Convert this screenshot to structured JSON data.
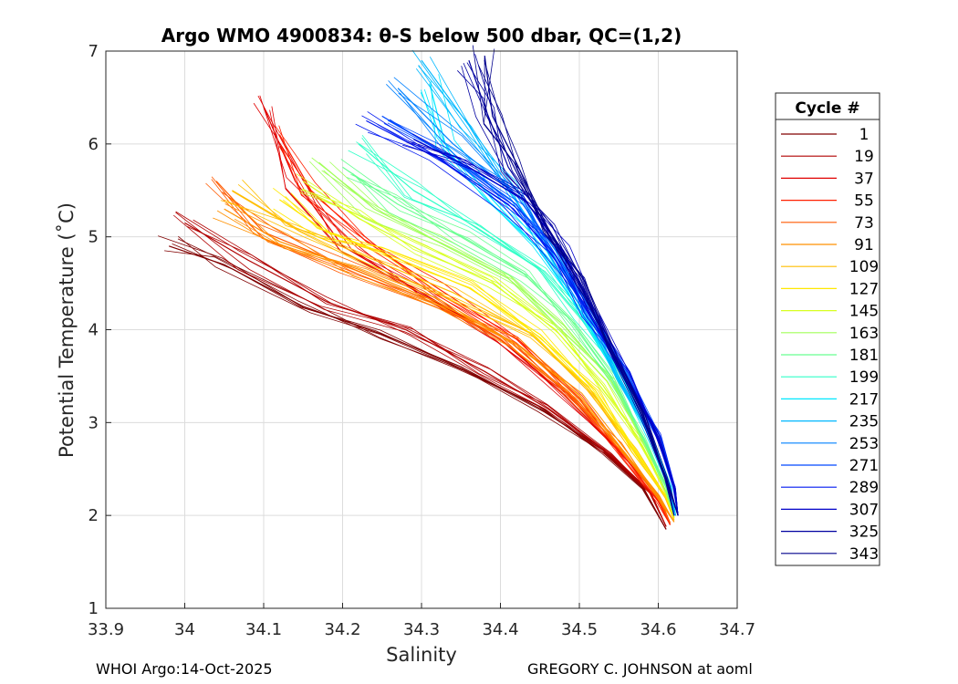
{
  "chart_data": {
    "type": "line",
    "title": "Argo WMO 4900834: θ-S below 500 dbar,  QC=(1,2)",
    "xlabel": "Salinity",
    "ylabel": "Potential Temperature (˚C)",
    "xlim": [
      33.9,
      34.7
    ],
    "ylim": [
      1,
      7
    ],
    "xticks": [
      "33.9",
      "34",
      "34.1",
      "34.2",
      "34.3",
      "34.4",
      "34.5",
      "34.6",
      "34.7"
    ],
    "yticks": [
      "1",
      "2",
      "3",
      "4",
      "5",
      "6",
      "7"
    ],
    "grid": true,
    "legend": {
      "title": "Cycle #",
      "placement": "right, outside",
      "entries": [
        {
          "label": "1",
          "color": "#800000"
        },
        {
          "label": "19",
          "color": "#b00000"
        },
        {
          "label": "37",
          "color": "#e00000"
        },
        {
          "label": "55",
          "color": "#ff2000"
        },
        {
          "label": "73",
          "color": "#ff5a00"
        },
        {
          "label": "91",
          "color": "#ff9000"
        },
        {
          "label": "109",
          "color": "#ffbe00"
        },
        {
          "label": "127",
          "color": "#ffe800"
        },
        {
          "label": "145",
          "color": "#d8ff20"
        },
        {
          "label": "163",
          "color": "#a0ff58"
        },
        {
          "label": "181",
          "color": "#68ff90"
        },
        {
          "label": "199",
          "color": "#30ffc8"
        },
        {
          "label": "217",
          "color": "#00e8ff"
        },
        {
          "label": "235",
          "color": "#00b8ff"
        },
        {
          "label": "253",
          "color": "#0080ff"
        },
        {
          "label": "271",
          "color": "#0048ff"
        },
        {
          "label": "289",
          "color": "#0018f0"
        },
        {
          "label": "307",
          "color": "#0000c8"
        },
        {
          "label": "325",
          "color": "#0000a0"
        },
        {
          "label": "343",
          "color": "#00008c"
        }
      ]
    },
    "series": [
      {
        "color": "#800000",
        "points": [
          [
            33.98,
            4.9
          ],
          [
            34.05,
            4.7
          ],
          [
            34.15,
            4.25
          ],
          [
            34.25,
            3.95
          ],
          [
            34.35,
            3.6
          ],
          [
            34.45,
            3.15
          ],
          [
            34.53,
            2.7
          ],
          [
            34.58,
            2.3
          ],
          [
            34.61,
            1.85
          ]
        ]
      },
      {
        "color": "#b00000",
        "points": [
          [
            34.0,
            5.15
          ],
          [
            34.08,
            4.75
          ],
          [
            34.18,
            4.3
          ],
          [
            34.28,
            4.0
          ],
          [
            34.38,
            3.55
          ],
          [
            34.46,
            3.15
          ],
          [
            34.54,
            2.65
          ],
          [
            34.59,
            2.25
          ],
          [
            34.61,
            1.88
          ]
        ]
      },
      {
        "color": "#e00000",
        "points": [
          [
            34.1,
            6.4
          ],
          [
            34.14,
            5.6
          ],
          [
            34.2,
            4.9
          ],
          [
            34.3,
            4.4
          ],
          [
            34.4,
            3.9
          ],
          [
            34.48,
            3.3
          ],
          [
            34.55,
            2.7
          ],
          [
            34.6,
            2.2
          ],
          [
            34.615,
            1.9
          ]
        ]
      },
      {
        "color": "#ff2000",
        "points": [
          [
            34.12,
            6.1
          ],
          [
            34.16,
            5.5
          ],
          [
            34.23,
            4.95
          ],
          [
            34.32,
            4.45
          ],
          [
            34.42,
            3.9
          ],
          [
            34.5,
            3.25
          ],
          [
            34.56,
            2.6
          ],
          [
            34.6,
            2.15
          ],
          [
            34.615,
            1.9
          ]
        ]
      },
      {
        "color": "#ff5a00",
        "points": [
          [
            34.04,
            5.6
          ],
          [
            34.1,
            5.05
          ],
          [
            34.2,
            4.7
          ],
          [
            34.3,
            4.35
          ],
          [
            34.4,
            3.9
          ],
          [
            34.48,
            3.35
          ],
          [
            34.55,
            2.75
          ],
          [
            34.6,
            2.2
          ],
          [
            34.615,
            1.92
          ]
        ]
      },
      {
        "color": "#ff9000",
        "points": [
          [
            34.05,
            5.3
          ],
          [
            34.12,
            4.95
          ],
          [
            34.22,
            4.65
          ],
          [
            34.32,
            4.3
          ],
          [
            34.42,
            3.85
          ],
          [
            34.5,
            3.3
          ],
          [
            34.56,
            2.65
          ],
          [
            34.6,
            2.2
          ],
          [
            34.62,
            1.93
          ]
        ]
      },
      {
        "color": "#ffbe00",
        "points": [
          [
            34.06,
            5.5
          ],
          [
            34.14,
            5.1
          ],
          [
            34.24,
            4.75
          ],
          [
            34.34,
            4.4
          ],
          [
            34.44,
            3.95
          ],
          [
            34.51,
            3.35
          ],
          [
            34.57,
            2.7
          ],
          [
            34.61,
            2.2
          ],
          [
            34.62,
            1.95
          ]
        ]
      },
      {
        "color": "#ffe800",
        "points": [
          [
            34.12,
            5.4
          ],
          [
            34.18,
            5.05
          ],
          [
            34.26,
            4.8
          ],
          [
            34.36,
            4.45
          ],
          [
            34.45,
            3.95
          ],
          [
            34.52,
            3.35
          ],
          [
            34.57,
            2.7
          ],
          [
            34.61,
            2.2
          ],
          [
            34.62,
            1.97
          ]
        ]
      },
      {
        "color": "#d8ff20",
        "points": [
          [
            34.15,
            5.6
          ],
          [
            34.22,
            5.2
          ],
          [
            34.3,
            4.85
          ],
          [
            34.39,
            4.5
          ],
          [
            34.47,
            4.0
          ],
          [
            34.53,
            3.4
          ],
          [
            34.58,
            2.75
          ],
          [
            34.61,
            2.25
          ],
          [
            34.62,
            1.98
          ]
        ]
      },
      {
        "color": "#a0ff58",
        "points": [
          [
            34.17,
            5.8
          ],
          [
            34.24,
            5.3
          ],
          [
            34.32,
            4.95
          ],
          [
            34.41,
            4.55
          ],
          [
            34.48,
            4.05
          ],
          [
            34.54,
            3.45
          ],
          [
            34.58,
            2.8
          ],
          [
            34.61,
            2.3
          ],
          [
            34.62,
            2.0
          ]
        ]
      },
      {
        "color": "#68ff90",
        "points": [
          [
            34.2,
            5.75
          ],
          [
            34.27,
            5.35
          ],
          [
            34.35,
            5.0
          ],
          [
            34.43,
            4.6
          ],
          [
            34.49,
            4.1
          ],
          [
            34.54,
            3.5
          ],
          [
            34.58,
            2.85
          ],
          [
            34.61,
            2.3
          ],
          [
            34.62,
            2.0
          ]
        ]
      },
      {
        "color": "#30ffc8",
        "points": [
          [
            34.22,
            6.0
          ],
          [
            34.29,
            5.5
          ],
          [
            34.37,
            5.1
          ],
          [
            34.45,
            4.65
          ],
          [
            34.5,
            4.15
          ],
          [
            34.55,
            3.5
          ],
          [
            34.59,
            2.85
          ],
          [
            34.615,
            2.3
          ],
          [
            34.62,
            2.0
          ]
        ]
      },
      {
        "color": "#00e8ff",
        "points": [
          [
            34.31,
            6.65
          ],
          [
            34.33,
            6.0
          ],
          [
            34.39,
            5.4
          ],
          [
            34.45,
            4.85
          ],
          [
            34.5,
            4.2
          ],
          [
            34.55,
            3.5
          ],
          [
            34.59,
            2.85
          ],
          [
            34.615,
            2.3
          ],
          [
            34.62,
            2.0
          ]
        ]
      },
      {
        "color": "#00b8ff",
        "points": [
          [
            34.3,
            6.9
          ],
          [
            34.36,
            6.2
          ],
          [
            34.41,
            5.5
          ],
          [
            34.46,
            4.9
          ],
          [
            34.51,
            4.2
          ],
          [
            34.55,
            3.5
          ],
          [
            34.59,
            2.85
          ],
          [
            34.615,
            2.3
          ],
          [
            34.622,
            2.0
          ]
        ]
      },
      {
        "color": "#0080ff",
        "points": [
          [
            34.27,
            6.6
          ],
          [
            34.34,
            6.0
          ],
          [
            34.42,
            5.45
          ],
          [
            34.47,
            4.85
          ],
          [
            34.51,
            4.2
          ],
          [
            34.56,
            3.5
          ],
          [
            34.6,
            2.85
          ],
          [
            34.62,
            2.3
          ],
          [
            34.625,
            2.0
          ]
        ]
      },
      {
        "color": "#0048ff",
        "points": [
          [
            34.25,
            6.3
          ],
          [
            34.33,
            5.9
          ],
          [
            34.42,
            5.35
          ],
          [
            34.47,
            4.8
          ],
          [
            34.51,
            4.2
          ],
          [
            34.56,
            3.5
          ],
          [
            34.6,
            2.85
          ],
          [
            34.62,
            2.3
          ],
          [
            34.625,
            2.0
          ]
        ]
      },
      {
        "color": "#0018f0",
        "points": [
          [
            34.23,
            6.25
          ],
          [
            34.32,
            5.85
          ],
          [
            34.41,
            5.35
          ],
          [
            34.47,
            4.8
          ],
          [
            34.51,
            4.2
          ],
          [
            34.56,
            3.5
          ],
          [
            34.6,
            2.85
          ],
          [
            34.62,
            2.3
          ],
          [
            34.625,
            2.0
          ]
        ]
      },
      {
        "color": "#0000c8",
        "points": [
          [
            34.29,
            6.05
          ],
          [
            34.36,
            5.75
          ],
          [
            34.43,
            5.4
          ],
          [
            34.48,
            4.85
          ],
          [
            34.52,
            4.2
          ],
          [
            34.56,
            3.5
          ],
          [
            34.6,
            2.85
          ],
          [
            34.62,
            2.3
          ],
          [
            34.625,
            2.0
          ]
        ]
      },
      {
        "color": "#0000a0",
        "points": [
          [
            34.36,
            6.9
          ],
          [
            34.38,
            6.4
          ],
          [
            34.41,
            5.75
          ],
          [
            34.46,
            5.1
          ],
          [
            34.5,
            4.5
          ],
          [
            34.54,
            3.8
          ],
          [
            34.58,
            3.1
          ],
          [
            34.61,
            2.4
          ],
          [
            34.62,
            2.0
          ]
        ]
      },
      {
        "color": "#00008c",
        "points": [
          [
            34.38,
            6.95
          ],
          [
            34.39,
            6.3
          ],
          [
            34.42,
            5.8
          ],
          [
            34.46,
            5.1
          ],
          [
            34.5,
            4.5
          ],
          [
            34.54,
            3.8
          ],
          [
            34.58,
            3.1
          ],
          [
            34.61,
            2.4
          ],
          [
            34.625,
            2.0
          ]
        ]
      }
    ]
  },
  "footer": {
    "left": "WHOI Argo:14-Oct-2025",
    "right": "GREGORY C. JOHNSON at aoml"
  }
}
